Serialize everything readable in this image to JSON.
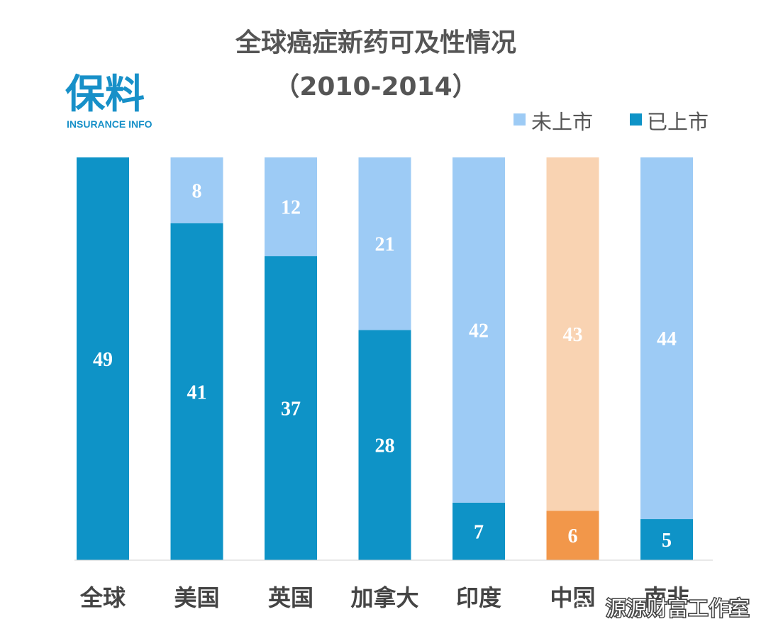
{
  "title": "全球癌症新药可及性情况",
  "subtitle": "（2010-2014）",
  "logo": {
    "name": "保料",
    "tagline": "INSURANCE INFO"
  },
  "watermark": "源源财富工作室",
  "colors": {
    "listed": "#0e93c7",
    "unlisted": "#9dcbf5",
    "highlight_listed": "#f2974a",
    "highlight_unlisted": "#f9d3b2",
    "text": "#555555"
  },
  "chart_data": {
    "type": "bar",
    "stacked": true,
    "title": "全球癌症新药可及性情况",
    "subtitle": "（2010-2014）",
    "categories": [
      "全球",
      "美国",
      "英国",
      "加拿大",
      "印度",
      "中国",
      "南非"
    ],
    "series": [
      {
        "name": "已上市",
        "values": [
          49,
          41,
          37,
          28,
          7,
          6,
          5
        ]
      },
      {
        "name": "未上市",
        "values": [
          0,
          8,
          12,
          21,
          42,
          43,
          44
        ]
      }
    ],
    "legend": [
      "未上市",
      "已上市"
    ],
    "legend_position": "top-right",
    "highlight_category": "中国",
    "ylim": [
      0,
      49
    ],
    "xlabel": "",
    "ylabel": "",
    "grid": false
  }
}
